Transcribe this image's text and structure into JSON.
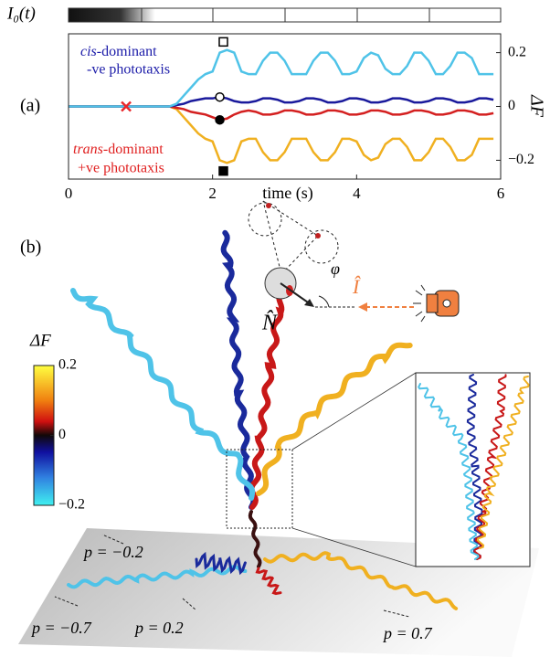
{
  "chart_data": {
    "type": "line",
    "panel_label": "(a)",
    "intensity_label": "I₀(t)",
    "xlabel": "time (s)",
    "ylabel": "ΔF",
    "xlim": [
      0,
      6
    ],
    "xticks": [
      0,
      2,
      4,
      6
    ],
    "ylim": [
      -0.27,
      0.27
    ],
    "yticks": [
      0.2,
      0,
      {
        "value": -0.2,
        "label": "−0.2"
      }
    ],
    "x": [
      0,
      0.1,
      0.2,
      0.3,
      0.4,
      0.5,
      0.6,
      0.7,
      0.8,
      0.9,
      1,
      1.1,
      1.2,
      1.3,
      1.4,
      1.5,
      1.6,
      1.7,
      1.8,
      1.9,
      2,
      2.1,
      2.2,
      2.3,
      2.4,
      2.5,
      2.6,
      2.7,
      2.8,
      2.9,
      3,
      3.1,
      3.2,
      3.3,
      3.4,
      3.5,
      3.6,
      3.7,
      3.8,
      3.9,
      4,
      4.1,
      4.2,
      4.3,
      4.4,
      4.5,
      4.6,
      4.7,
      4.8,
      4.9,
      5,
      5.1,
      5.2,
      5.3,
      5.4,
      5.5,
      5.6,
      5.7,
      5.8,
      5.9,
      6
    ],
    "series": [
      {
        "color": "#f0b020",
        "values": [
          0,
          0,
          0,
          0,
          0,
          0,
          0,
          0,
          0,
          0,
          0,
          0,
          0,
          0,
          0,
          -0.01,
          -0.04,
          -0.07,
          -0.1,
          -0.12,
          -0.13,
          -0.2,
          -0.21,
          -0.2,
          -0.13,
          -0.12,
          -0.12,
          -0.17,
          -0.2,
          -0.2,
          -0.17,
          -0.12,
          -0.12,
          -0.12,
          -0.17,
          -0.2,
          -0.2,
          -0.17,
          -0.12,
          -0.12,
          -0.13,
          -0.18,
          -0.2,
          -0.19,
          -0.14,
          -0.12,
          -0.12,
          -0.15,
          -0.2,
          -0.2,
          -0.17,
          -0.12,
          -0.12,
          -0.15,
          -0.2,
          -0.2,
          -0.18,
          -0.12,
          -0.12,
          -0.12,
          null
        ]
      },
      {
        "color": "#d42020",
        "values": [
          0,
          0,
          0,
          0,
          0,
          0,
          0,
          0,
          0,
          0,
          0,
          0,
          0,
          0,
          0,
          -0.005,
          -0.01,
          -0.02,
          -0.025,
          -0.03,
          -0.04,
          -0.05,
          -0.045,
          -0.03,
          -0.02,
          -0.015,
          -0.02,
          -0.03,
          -0.03,
          -0.025,
          -0.015,
          -0.015,
          -0.02,
          -0.03,
          -0.03,
          -0.025,
          -0.015,
          -0.015,
          -0.02,
          -0.03,
          -0.03,
          -0.025,
          -0.015,
          -0.015,
          -0.02,
          -0.03,
          -0.03,
          -0.025,
          -0.015,
          -0.015,
          -0.02,
          -0.03,
          -0.03,
          -0.025,
          -0.015,
          -0.015,
          -0.02,
          -0.03,
          -0.03,
          -0.025,
          null
        ]
      },
      {
        "color": "#1a1a9c",
        "values": [
          0,
          0,
          0,
          0,
          0,
          0,
          0,
          0,
          0,
          0,
          0,
          0,
          0,
          0,
          0,
          0.005,
          0.01,
          0.02,
          0.025,
          0.03,
          0.03,
          0.035,
          0.03,
          0.02,
          0.015,
          0.015,
          0.02,
          0.03,
          0.03,
          0.025,
          0.015,
          0.015,
          0.02,
          0.03,
          0.03,
          0.025,
          0.015,
          0.015,
          0.02,
          0.03,
          0.03,
          0.025,
          0.015,
          0.015,
          0.02,
          0.03,
          0.03,
          0.025,
          0.015,
          0.015,
          0.02,
          0.03,
          0.03,
          0.025,
          0.015,
          0.015,
          0.02,
          0.03,
          0.03,
          0.025,
          null
        ]
      },
      {
        "color": "#4fc3e8",
        "values": [
          0,
          0,
          0,
          0,
          0,
          0,
          0,
          0,
          0,
          0,
          0,
          0,
          0,
          0,
          0,
          0.01,
          0.04,
          0.07,
          0.1,
          0.12,
          0.13,
          0.2,
          0.21,
          0.2,
          0.13,
          0.12,
          0.12,
          0.17,
          0.2,
          0.2,
          0.17,
          0.12,
          0.12,
          0.12,
          0.17,
          0.2,
          0.2,
          0.17,
          0.12,
          0.12,
          0.13,
          0.18,
          0.2,
          0.19,
          0.14,
          0.12,
          0.12,
          0.15,
          0.2,
          0.2,
          0.17,
          0.12,
          0.12,
          0.15,
          0.2,
          0.2,
          0.18,
          0.12,
          0.12,
          0.12,
          null
        ]
      }
    ],
    "markers": [
      {
        "x": 0.8,
        "y": 0,
        "shape": "cross",
        "color": "#e8262a"
      },
      {
        "x": 2.15,
        "y": 0.24,
        "shape": "open-square",
        "color": "#000000"
      },
      {
        "x": 2.15,
        "y": -0.24,
        "shape": "filled-square",
        "color": "#000000"
      },
      {
        "x": 2.1,
        "y": 0.035,
        "shape": "open-circle",
        "color": "#000000"
      },
      {
        "x": 2.1,
        "y": -0.05,
        "shape": "filled-circle",
        "color": "#000000"
      }
    ],
    "annotations": [
      {
        "italic": "cis",
        "rest": "-dominant",
        "line2": "-ve phototaxis",
        "color": "#1a1aa8"
      },
      {
        "italic": "trans",
        "rest": "-dominant",
        "line2": "+ve phototaxis",
        "color": "#e02020"
      }
    ]
  },
  "panel_b": {
    "label": "(b)",
    "colorbar_label": "ΔF",
    "colorbar_lim": [
      -0.2,
      0.2
    ],
    "colorbar_ticks": [
      0.2,
      0,
      {
        "value": -0.2,
        "label": "−0.2"
      }
    ],
    "normal_label": "N̂",
    "light_label": "Î",
    "angle_label": "φ",
    "p_labels": [
      "p = −0.2",
      "p = −0.7",
      "p = 0.2",
      "p = 0.7"
    ]
  }
}
